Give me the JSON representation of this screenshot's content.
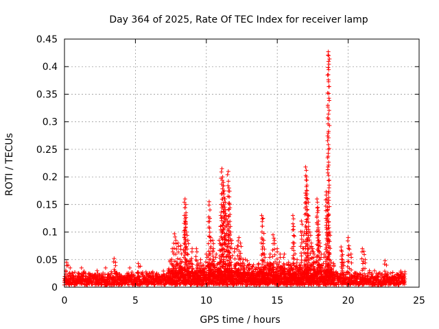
{
  "chart_data": {
    "type": "scatter",
    "title": "Day 364 of 2025, Rate Of TEC Index for receiver lamp",
    "xlabel": "GPS time / hours",
    "ylabel": "ROTI / TECUs",
    "xlim": [
      0,
      25
    ],
    "ylim": [
      0,
      0.45
    ],
    "x_ticks": [
      0,
      5,
      10,
      15,
      20,
      25
    ],
    "x_tick_labels": [
      "0",
      "5",
      "10",
      "15",
      "20",
      "25"
    ],
    "y_ticks": [
      0,
      0.05,
      0.1,
      0.15,
      0.2,
      0.25,
      0.3,
      0.35,
      0.4,
      0.45
    ],
    "y_tick_labels": [
      "0",
      "0.05",
      "0.1",
      "0.15",
      "0.2",
      "0.25",
      "0.3",
      "0.35",
      "0.4",
      "0.45"
    ],
    "grid": true,
    "marker": "+",
    "color": "#ff0000",
    "series": [
      {
        "name": "ROTI",
        "points": [
          [
            18.6,
            0.427
          ],
          [
            18.62,
            0.42
          ],
          [
            0.15,
            0.045
          ],
          [
            0.25,
            0.04
          ],
          [
            0.4,
            0.035
          ],
          [
            0.1,
            0.03
          ],
          [
            1.2,
            0.035
          ],
          [
            2.3,
            0.03
          ],
          [
            2.9,
            0.035
          ],
          [
            3.5,
            0.052
          ],
          [
            3.6,
            0.045
          ],
          [
            4.6,
            0.035
          ],
          [
            5.2,
            0.043
          ],
          [
            5.35,
            0.038
          ],
          [
            6.0,
            0.025
          ],
          [
            7.0,
            0.02
          ],
          [
            7.6,
            0.07
          ],
          [
            7.75,
            0.097
          ],
          [
            7.85,
            0.085
          ],
          [
            8.0,
            0.08
          ],
          [
            8.2,
            0.075
          ],
          [
            8.5,
            0.16
          ],
          [
            8.55,
            0.15
          ],
          [
            8.45,
            0.13
          ],
          [
            8.5,
            0.12
          ],
          [
            8.6,
            0.1
          ],
          [
            8.7,
            0.085
          ],
          [
            9.0,
            0.07
          ],
          [
            9.3,
            0.07
          ],
          [
            9.6,
            0.05
          ],
          [
            9.8,
            0.04
          ],
          [
            10.0,
            0.06
          ],
          [
            10.2,
            0.155
          ],
          [
            10.25,
            0.125
          ],
          [
            10.3,
            0.09
          ],
          [
            10.45,
            0.085
          ],
          [
            10.5,
            0.07
          ],
          [
            10.7,
            0.06
          ],
          [
            10.9,
            0.085
          ],
          [
            11.0,
            0.11
          ],
          [
            11.05,
            0.15
          ],
          [
            11.1,
            0.215
          ],
          [
            11.15,
            0.2
          ],
          [
            11.2,
            0.19
          ],
          [
            11.25,
            0.175
          ],
          [
            11.3,
            0.16
          ],
          [
            11.35,
            0.14
          ],
          [
            11.4,
            0.13
          ],
          [
            11.5,
            0.12
          ],
          [
            11.55,
            0.21
          ],
          [
            11.6,
            0.18
          ],
          [
            11.65,
            0.15
          ],
          [
            11.7,
            0.1
          ],
          [
            11.8,
            0.085
          ],
          [
            12.0,
            0.07
          ],
          [
            12.2,
            0.075
          ],
          [
            12.3,
            0.09
          ],
          [
            12.4,
            0.08
          ],
          [
            12.6,
            0.05
          ],
          [
            13.0,
            0.04
          ],
          [
            13.5,
            0.035
          ],
          [
            13.9,
            0.13
          ],
          [
            14.0,
            0.125
          ],
          [
            14.05,
            0.085
          ],
          [
            14.1,
            0.06
          ],
          [
            14.5,
            0.06
          ],
          [
            14.7,
            0.095
          ],
          [
            14.8,
            0.085
          ],
          [
            15.0,
            0.07
          ],
          [
            15.2,
            0.06
          ],
          [
            15.5,
            0.06
          ],
          [
            15.8,
            0.045
          ],
          [
            16.0,
            0.04
          ],
          [
            16.1,
            0.13
          ],
          [
            16.15,
            0.11
          ],
          [
            16.2,
            0.08
          ],
          [
            16.4,
            0.05
          ],
          [
            16.7,
            0.12
          ],
          [
            16.75,
            0.1
          ],
          [
            16.9,
            0.1
          ],
          [
            17.0,
            0.218
          ],
          [
            17.05,
            0.2
          ],
          [
            17.1,
            0.175
          ],
          [
            17.15,
            0.16
          ],
          [
            17.2,
            0.13
          ],
          [
            17.3,
            0.1
          ],
          [
            17.4,
            0.08
          ],
          [
            17.5,
            0.07
          ],
          [
            17.6,
            0.06
          ],
          [
            17.8,
            0.16
          ],
          [
            17.85,
            0.145
          ],
          [
            17.9,
            0.12
          ],
          [
            17.95,
            0.1
          ],
          [
            18.0,
            0.08
          ],
          [
            18.1,
            0.06
          ],
          [
            18.3,
            0.06
          ],
          [
            18.45,
            0.173
          ],
          [
            18.5,
            0.16
          ],
          [
            18.55,
            0.145
          ],
          [
            18.6,
            0.13
          ],
          [
            18.7,
            0.1
          ],
          [
            18.8,
            0.045
          ],
          [
            19.0,
            0.04
          ],
          [
            19.5,
            0.073
          ],
          [
            19.55,
            0.065
          ],
          [
            19.6,
            0.05
          ],
          [
            19.7,
            0.045
          ],
          [
            20.0,
            0.09
          ],
          [
            20.05,
            0.075
          ],
          [
            20.2,
            0.06
          ],
          [
            20.5,
            0.025
          ],
          [
            21.0,
            0.07
          ],
          [
            21.1,
            0.065
          ],
          [
            21.2,
            0.05
          ],
          [
            21.5,
            0.03
          ],
          [
            22.0,
            0.025
          ],
          [
            22.6,
            0.048
          ],
          [
            22.7,
            0.04
          ],
          [
            23.0,
            0.025
          ],
          [
            23.3,
            0.02
          ],
          [
            23.8,
            0.025
          ],
          [
            23.9,
            0.02
          ],
          [
            24.0,
            0.015
          ]
        ]
      }
    ]
  }
}
